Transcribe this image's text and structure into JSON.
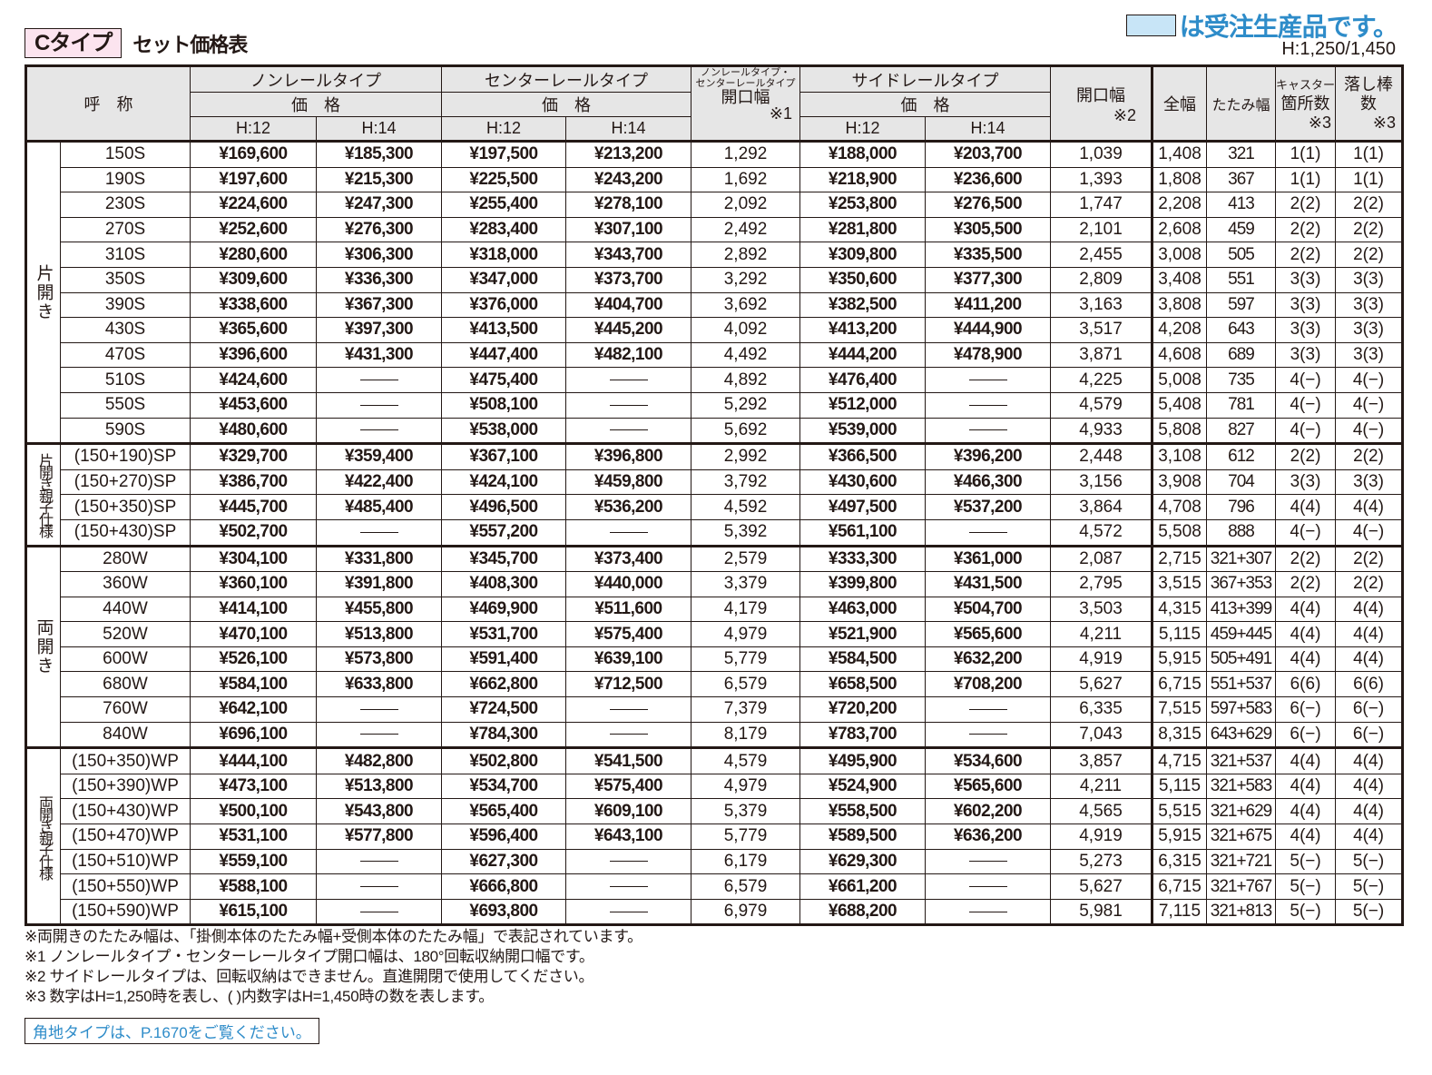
{
  "header": {
    "type_label": "Cタイプ",
    "title": "セット価格表",
    "legend_text": "は受注生産品です。",
    "legend_color": "#c8e5f7",
    "height_note": "H:1,250/1,450"
  },
  "columns": {
    "name": "呼　称",
    "nonrail": "ノンレールタイプ",
    "center": "センターレールタイプ",
    "price": "価　格",
    "h12": "H:12",
    "h14": "H:14",
    "opening1_top": "ノンレールタイプ・",
    "opening1_mid": "センターレールタイプ",
    "opening1_main": "開口幅",
    "opening1_note": "※1",
    "side": "サイドレールタイプ",
    "opening2_main": "開口幅",
    "opening2_note": "※2",
    "total_width": "全幅",
    "folded_width": "たたみ幅",
    "caster_l1": "キャスター",
    "caster_l2": "箇所数",
    "caster_note": "※3",
    "rod_l1": "落し棒",
    "rod_l2": "数",
    "rod_note": "※3"
  },
  "groups": [
    {
      "label": "片開き",
      "rows": [
        {
          "name": "150S",
          "nr12": "¥169,600",
          "nr14": "¥185,300",
          "cr12": "¥197,500",
          "cr14": "¥213,200",
          "open1": "1,292",
          "sr12": "¥188,000",
          "sr14": "¥203,700",
          "open2": "1,039",
          "total": "1,408",
          "fold": "321",
          "caster": "1(1)",
          "rod": "1(1)"
        },
        {
          "name": "190S",
          "nr12": "¥197,600",
          "nr14": "¥215,300",
          "cr12": "¥225,500",
          "cr14": "¥243,200",
          "open1": "1,692",
          "sr12": "¥218,900",
          "sr14": "¥236,600",
          "open2": "1,393",
          "total": "1,808",
          "fold": "367",
          "caster": "1(1)",
          "rod": "1(1)"
        },
        {
          "name": "230S",
          "nr12": "¥224,600",
          "nr14": "¥247,300",
          "cr12": "¥255,400",
          "cr14": "¥278,100",
          "open1": "2,092",
          "sr12": "¥253,800",
          "sr14": "¥276,500",
          "open2": "1,747",
          "total": "2,208",
          "fold": "413",
          "caster": "2(2)",
          "rod": "2(2)"
        },
        {
          "name": "270S",
          "nr12": "¥252,600",
          "nr14": "¥276,300",
          "cr12": "¥283,400",
          "cr14": "¥307,100",
          "open1": "2,492",
          "sr12": "¥281,800",
          "sr14": "¥305,500",
          "open2": "2,101",
          "total": "2,608",
          "fold": "459",
          "caster": "2(2)",
          "rod": "2(2)"
        },
        {
          "name": "310S",
          "nr12": "¥280,600",
          "nr14": "¥306,300",
          "cr12": "¥318,000",
          "cr14": "¥343,700",
          "open1": "2,892",
          "sr12": "¥309,800",
          "sr14": "¥335,500",
          "open2": "2,455",
          "total": "3,008",
          "fold": "505",
          "caster": "2(2)",
          "rod": "2(2)"
        },
        {
          "name": "350S",
          "nr12": "¥309,600",
          "nr14": "¥336,300",
          "cr12": "¥347,000",
          "cr14": "¥373,700",
          "open1": "3,292",
          "sr12": "¥350,600",
          "sr14": "¥377,300",
          "open2": "2,809",
          "total": "3,408",
          "fold": "551",
          "caster": "3(3)",
          "rod": "3(3)"
        },
        {
          "name": "390S",
          "nr12": "¥338,600",
          "nr14": "¥367,300",
          "cr12": "¥376,000",
          "cr14": "¥404,700",
          "open1": "3,692",
          "sr12": "¥382,500",
          "sr14": "¥411,200",
          "open2": "3,163",
          "total": "3,808",
          "fold": "597",
          "caster": "3(3)",
          "rod": "3(3)"
        },
        {
          "name": "430S",
          "nr12": "¥365,600",
          "nr14": "¥397,300",
          "cr12": "¥413,500",
          "cr14": "¥445,200",
          "open1": "4,092",
          "sr12": "¥413,200",
          "sr14": "¥444,900",
          "open2": "3,517",
          "total": "4,208",
          "fold": "643",
          "caster": "3(3)",
          "rod": "3(3)"
        },
        {
          "name": "470S",
          "nr12": "¥396,600",
          "nr14": "¥431,300",
          "cr12": "¥447,400",
          "cr14": "¥482,100",
          "open1": "4,492",
          "sr12": "¥444,200",
          "sr14": "¥478,900",
          "open2": "3,871",
          "total": "4,608",
          "fold": "689",
          "caster": "3(3)",
          "rod": "3(3)"
        },
        {
          "name": "510S",
          "nr12": "¥424,600",
          "nr14": "—",
          "cr12": "¥475,400",
          "cr14": "—",
          "open1": "4,892",
          "sr12": "¥476,400",
          "sr14": "—",
          "open2": "4,225",
          "total": "5,008",
          "fold": "735",
          "caster": "4(−)",
          "rod": "4(−)"
        },
        {
          "name": "550S",
          "nr12": "¥453,600",
          "nr14": "—",
          "cr12": "¥508,100",
          "cr14": "—",
          "open1": "5,292",
          "sr12": "¥512,000",
          "sr14": "—",
          "open2": "4,579",
          "total": "5,408",
          "fold": "781",
          "caster": "4(−)",
          "rod": "4(−)"
        },
        {
          "name": "590S",
          "nr12": "¥480,600",
          "nr14": "—",
          "cr12": "¥538,000",
          "cr14": "—",
          "open1": "5,692",
          "sr12": "¥539,000",
          "sr14": "—",
          "open2": "4,933",
          "total": "5,808",
          "fold": "827",
          "caster": "4(−)",
          "rod": "4(−)"
        }
      ]
    },
    {
      "label": "片開き親子仕様",
      "rows": [
        {
          "name": "(150+190)SP",
          "nr12": "¥329,700",
          "nr14": "¥359,400",
          "cr12": "¥367,100",
          "cr14": "¥396,800",
          "open1": "2,992",
          "sr12": "¥366,500",
          "sr14": "¥396,200",
          "open2": "2,448",
          "total": "3,108",
          "fold": "612",
          "caster": "2(2)",
          "rod": "2(2)"
        },
        {
          "name": "(150+270)SP",
          "nr12": "¥386,700",
          "nr14": "¥422,400",
          "cr12": "¥424,100",
          "cr14": "¥459,800",
          "open1": "3,792",
          "sr12": "¥430,600",
          "sr14": "¥466,300",
          "open2": "3,156",
          "total": "3,908",
          "fold": "704",
          "caster": "3(3)",
          "rod": "3(3)"
        },
        {
          "name": "(150+350)SP",
          "nr12": "¥445,700",
          "nr14": "¥485,400",
          "cr12": "¥496,500",
          "cr14": "¥536,200",
          "open1": "4,592",
          "sr12": "¥497,500",
          "sr14": "¥537,200",
          "open2": "3,864",
          "total": "4,708",
          "fold": "796",
          "caster": "4(4)",
          "rod": "4(4)"
        },
        {
          "name": "(150+430)SP",
          "nr12": "¥502,700",
          "nr14": "—",
          "cr12": "¥557,200",
          "cr14": "—",
          "open1": "5,392",
          "sr12": "¥561,100",
          "sr14": "—",
          "open2": "4,572",
          "total": "5,508",
          "fold": "888",
          "caster": "4(−)",
          "rod": "4(−)"
        }
      ]
    },
    {
      "label": "両開き",
      "rows": [
        {
          "name": "280W",
          "nr12": "¥304,100",
          "nr14": "¥331,800",
          "cr12": "¥345,700",
          "cr14": "¥373,400",
          "open1": "2,579",
          "sr12": "¥333,300",
          "sr14": "¥361,000",
          "open2": "2,087",
          "total": "2,715",
          "fold": "321+307",
          "caster": "2(2)",
          "rod": "2(2)"
        },
        {
          "name": "360W",
          "nr12": "¥360,100",
          "nr14": "¥391,800",
          "cr12": "¥408,300",
          "cr14": "¥440,000",
          "open1": "3,379",
          "sr12": "¥399,800",
          "sr14": "¥431,500",
          "open2": "2,795",
          "total": "3,515",
          "fold": "367+353",
          "caster": "2(2)",
          "rod": "2(2)"
        },
        {
          "name": "440W",
          "nr12": "¥414,100",
          "nr14": "¥455,800",
          "cr12": "¥469,900",
          "cr14": "¥511,600",
          "open1": "4,179",
          "sr12": "¥463,000",
          "sr14": "¥504,700",
          "open2": "3,503",
          "total": "4,315",
          "fold": "413+399",
          "caster": "4(4)",
          "rod": "4(4)"
        },
        {
          "name": "520W",
          "nr12": "¥470,100",
          "nr14": "¥513,800",
          "cr12": "¥531,700",
          "cr14": "¥575,400",
          "open1": "4,979",
          "sr12": "¥521,900",
          "sr14": "¥565,600",
          "open2": "4,211",
          "total": "5,115",
          "fold": "459+445",
          "caster": "4(4)",
          "rod": "4(4)"
        },
        {
          "name": "600W",
          "nr12": "¥526,100",
          "nr14": "¥573,800",
          "cr12": "¥591,400",
          "cr14": "¥639,100",
          "open1": "5,779",
          "sr12": "¥584,500",
          "sr14": "¥632,200",
          "open2": "4,919",
          "total": "5,915",
          "fold": "505+491",
          "caster": "4(4)",
          "rod": "4(4)"
        },
        {
          "name": "680W",
          "nr12": "¥584,100",
          "nr14": "¥633,800",
          "cr12": "¥662,800",
          "cr14": "¥712,500",
          "open1": "6,579",
          "sr12": "¥658,500",
          "sr14": "¥708,200",
          "open2": "5,627",
          "total": "6,715",
          "fold": "551+537",
          "caster": "6(6)",
          "rod": "6(6)"
        },
        {
          "name": "760W",
          "nr12": "¥642,100",
          "nr14": "—",
          "cr12": "¥724,500",
          "cr14": "—",
          "open1": "7,379",
          "sr12": "¥720,200",
          "sr14": "—",
          "open2": "6,335",
          "total": "7,515",
          "fold": "597+583",
          "caster": "6(−)",
          "rod": "6(−)"
        },
        {
          "name": "840W",
          "nr12": "¥696,100",
          "nr14": "—",
          "cr12": "¥784,300",
          "cr14": "—",
          "open1": "8,179",
          "sr12": "¥783,700",
          "sr14": "—",
          "open2": "7,043",
          "total": "8,315",
          "fold": "643+629",
          "caster": "6(−)",
          "rod": "6(−)"
        }
      ]
    },
    {
      "label": "両開き親子仕様",
      "rows": [
        {
          "name": "(150+350)WP",
          "nr12": "¥444,100",
          "nr14": "¥482,800",
          "cr12": "¥502,800",
          "cr14": "¥541,500",
          "open1": "4,579",
          "sr12": "¥495,900",
          "sr14": "¥534,600",
          "open2": "3,857",
          "total": "4,715",
          "fold": "321+537",
          "caster": "4(4)",
          "rod": "4(4)"
        },
        {
          "name": "(150+390)WP",
          "nr12": "¥473,100",
          "nr14": "¥513,800",
          "cr12": "¥534,700",
          "cr14": "¥575,400",
          "open1": "4,979",
          "sr12": "¥524,900",
          "sr14": "¥565,600",
          "open2": "4,211",
          "total": "5,115",
          "fold": "321+583",
          "caster": "4(4)",
          "rod": "4(4)"
        },
        {
          "name": "(150+430)WP",
          "nr12": "¥500,100",
          "nr14": "¥543,800",
          "cr12": "¥565,400",
          "cr14": "¥609,100",
          "open1": "5,379",
          "sr12": "¥558,500",
          "sr14": "¥602,200",
          "open2": "4,565",
          "total": "5,515",
          "fold": "321+629",
          "caster": "4(4)",
          "rod": "4(4)"
        },
        {
          "name": "(150+470)WP",
          "nr12": "¥531,100",
          "nr14": "¥577,800",
          "cr12": "¥596,400",
          "cr14": "¥643,100",
          "open1": "5,779",
          "sr12": "¥589,500",
          "sr14": "¥636,200",
          "open2": "4,919",
          "total": "5,915",
          "fold": "321+675",
          "caster": "4(4)",
          "rod": "4(4)"
        },
        {
          "name": "(150+510)WP",
          "nr12": "¥559,100",
          "nr14": "—",
          "cr12": "¥627,300",
          "cr14": "—",
          "open1": "6,179",
          "sr12": "¥629,300",
          "sr14": "—",
          "open2": "5,273",
          "total": "6,315",
          "fold": "321+721",
          "caster": "5(−)",
          "rod": "5(−)"
        },
        {
          "name": "(150+550)WP",
          "nr12": "¥588,100",
          "nr14": "—",
          "cr12": "¥666,800",
          "cr14": "—",
          "open1": "6,579",
          "sr12": "¥661,200",
          "sr14": "—",
          "open2": "5,627",
          "total": "6,715",
          "fold": "321+767",
          "caster": "5(−)",
          "rod": "5(−)"
        },
        {
          "name": "(150+590)WP",
          "nr12": "¥615,100",
          "nr14": "—",
          "cr12": "¥693,800",
          "cr14": "—",
          "open1": "6,979",
          "sr12": "¥688,200",
          "sr14": "—",
          "open2": "5,981",
          "total": "7,115",
          "fold": "321+813",
          "caster": "5(−)",
          "rod": "5(−)"
        }
      ]
    }
  ],
  "notes": [
    "※両開きのたたみ幅は、「掛側本体のたたみ幅+受側本体のたたみ幅」で表記されています。",
    "※1 ノンレールタイプ・センターレールタイプ開口幅は、180°回転収納開口幅です。",
    "※2 サイドレールタイプは、回転収納はできません。直進開閉で使用してください。",
    "※3 数字はH=1,250時を表し、( )内数字はH=1,450時の数を表します。"
  ],
  "reference_link": "角地タイプは、P.1670をご覧ください。"
}
